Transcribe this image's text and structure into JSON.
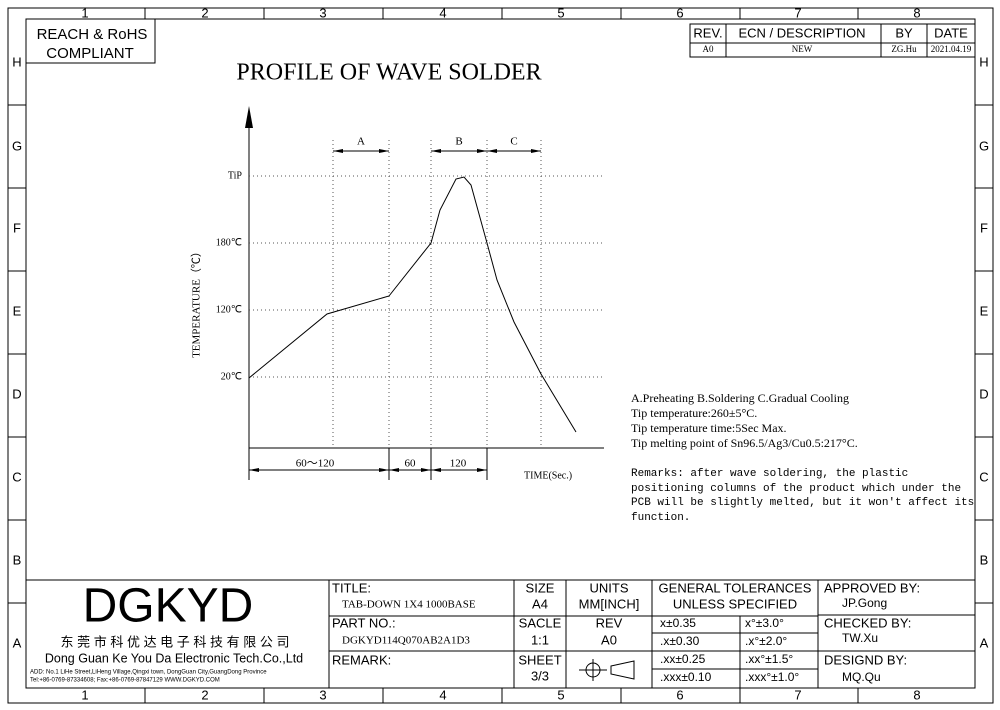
{
  "border": {
    "columns": [
      "1",
      "2",
      "3",
      "4",
      "5",
      "6",
      "7",
      "8"
    ],
    "rows": [
      "H",
      "G",
      "F",
      "E",
      "D",
      "C",
      "B",
      "A"
    ]
  },
  "compliance": [
    "REACH & RoHS",
    "COMPLIANT"
  ],
  "revision": {
    "headers": [
      "REV.",
      "ECN / DESCRIPTION",
      "BY",
      "DATE"
    ],
    "row": [
      "A0",
      "NEW",
      "ZG.Hu",
      "2021.04.19"
    ]
  },
  "title": "PROFILE OF WAVE SOLDER",
  "profile": {
    "y_axis_label": "TEMPERATURE（℃）",
    "y_ticks": [
      "TiP",
      "180℃",
      "120℃",
      "20℃"
    ],
    "zones": [
      "A",
      "B",
      "C"
    ],
    "durations": [
      "60～120",
      "60",
      "120"
    ],
    "x_axis_label": "TIME(Sec.)"
  },
  "notes": [
    "A.Preheating  B.Soldering  C.Gradual Cooling",
    "Tip temperature:260±5°C.",
    "Tip temperature time:5Sec Max.",
    "Tip melting point of Sn96.5/Ag3/Cu0.5:217°C."
  ],
  "remarks": [
    "Remarks: after wave soldering, the plastic",
    "positioning columns of the product  which under the",
    "PCB will be slightly melted, but it won't affect its",
    "function."
  ],
  "title_block": {
    "logo": "DGKYD",
    "company_cn": "东 莞 市 科 优 达 电 子 科 技 有 限 公 司",
    "company_en": "Dong Guan Ke You Da Electronic Tech.Co.,Ltd",
    "address": "ADD: No.1 LiHe Street,LiHeng Village,Qingxi town, DongGuan City,GuangDong Province",
    "contact": "Tel:+86-0769-87334608; Fax:+86-0769-87847129  WWW.DGKYD.COM",
    "title_label": "TITLE:",
    "title_value": "TAB-DOWN 1X4 1000BASE",
    "part_label": "PART NO.:",
    "part_value": "DGKYD114Q070AB2A1D3",
    "remark_label": "REMARK:",
    "size_label": "SIZE",
    "size_value": "A4",
    "scale_label": "SACLE",
    "scale_value": "1:1",
    "sheet_label": "SHEET",
    "sheet_value": "3/3",
    "units_label": "UNITS",
    "units_value": "MM[INCH]",
    "rev_label": "REV",
    "rev_value": "A0",
    "tolerance_heading": [
      "GENERAL TOLERANCES",
      "UNLESS SPECIFIED"
    ],
    "tolerances": [
      [
        "x±0.35",
        "x°±3.0°"
      ],
      [
        ".x±0.30",
        ".x°±2.0°"
      ],
      [
        ".xx±0.25",
        ".xx°±1.5°"
      ],
      [
        ".xxx±0.10",
        ".xxx°±1.0°"
      ]
    ],
    "approved_label": "APPROVED BY:",
    "approved_value": "JP.Gong",
    "checked_label": "CHECKED BY:",
    "checked_value": "TW.Xu",
    "designed_label": "DESIGND BY:",
    "designed_value": "MQ.Qu"
  }
}
